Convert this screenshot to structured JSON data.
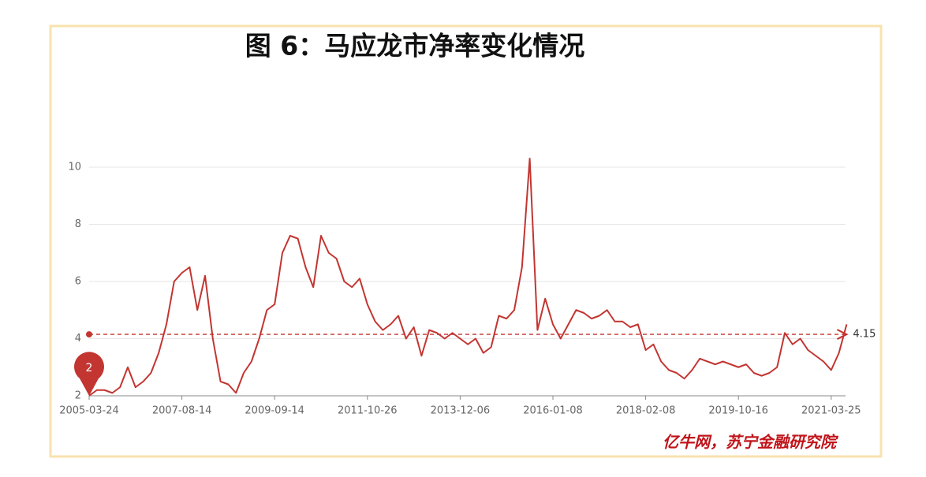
{
  "chart_data": {
    "type": "line",
    "title": "图 6：马应龙市净率变化情况",
    "source": "亿牛网，苏宁金融研究院",
    "categories": [
      "2005-03-24",
      null,
      null,
      null,
      null,
      null,
      null,
      null,
      null,
      null,
      null,
      null,
      "2007-08-14",
      null,
      null,
      null,
      null,
      null,
      null,
      null,
      null,
      null,
      null,
      null,
      "2009-09-14",
      null,
      null,
      null,
      null,
      null,
      null,
      null,
      null,
      null,
      null,
      null,
      "2011-10-26",
      null,
      null,
      null,
      null,
      null,
      null,
      null,
      null,
      null,
      null,
      null,
      "2013-12-06",
      null,
      null,
      null,
      null,
      null,
      null,
      null,
      null,
      null,
      null,
      null,
      "2016-01-08",
      null,
      null,
      null,
      null,
      null,
      null,
      null,
      null,
      null,
      null,
      null,
      "2018-02-08",
      null,
      null,
      null,
      null,
      null,
      null,
      null,
      null,
      null,
      null,
      null,
      "2019-10-16",
      null,
      null,
      null,
      null,
      null,
      null,
      null,
      null,
      null,
      null,
      null,
      "2021-03-25",
      null,
      null
    ],
    "values": [
      2.0,
      2.2,
      2.2,
      2.1,
      2.3,
      3.0,
      2.3,
      2.5,
      2.8,
      3.5,
      4.5,
      6.0,
      6.3,
      6.5,
      5.0,
      6.2,
      4.0,
      2.5,
      2.4,
      2.1,
      2.8,
      3.2,
      4.0,
      5.0,
      5.2,
      7.0,
      7.6,
      7.5,
      6.5,
      5.8,
      7.6,
      7.0,
      6.8,
      6.0,
      5.8,
      6.1,
      5.2,
      4.6,
      4.3,
      4.5,
      4.8,
      4.0,
      4.4,
      3.4,
      4.3,
      4.2,
      4.0,
      4.2,
      4.0,
      3.8,
      4.0,
      3.5,
      3.7,
      4.8,
      4.7,
      5.0,
      6.5,
      10.3,
      4.3,
      5.4,
      4.5,
      4.0,
      4.5,
      5.0,
      4.9,
      4.7,
      4.8,
      5.0,
      4.6,
      4.6,
      4.4,
      4.5,
      3.6,
      3.8,
      3.2,
      2.9,
      2.8,
      2.6,
      2.9,
      3.3,
      3.2,
      3.1,
      3.2,
      3.1,
      3.0,
      3.1,
      2.8,
      2.7,
      2.8,
      3.0,
      4.2,
      3.8,
      4.0,
      3.6,
      3.4,
      3.2,
      2.9,
      3.5,
      4.5
    ],
    "color": "#c23531",
    "min_marker": 2,
    "average": 4.15,
    "ylim": [
      2,
      10.5
    ],
    "yticks": [
      2,
      4,
      6,
      8,
      10
    ],
    "grid": true
  }
}
